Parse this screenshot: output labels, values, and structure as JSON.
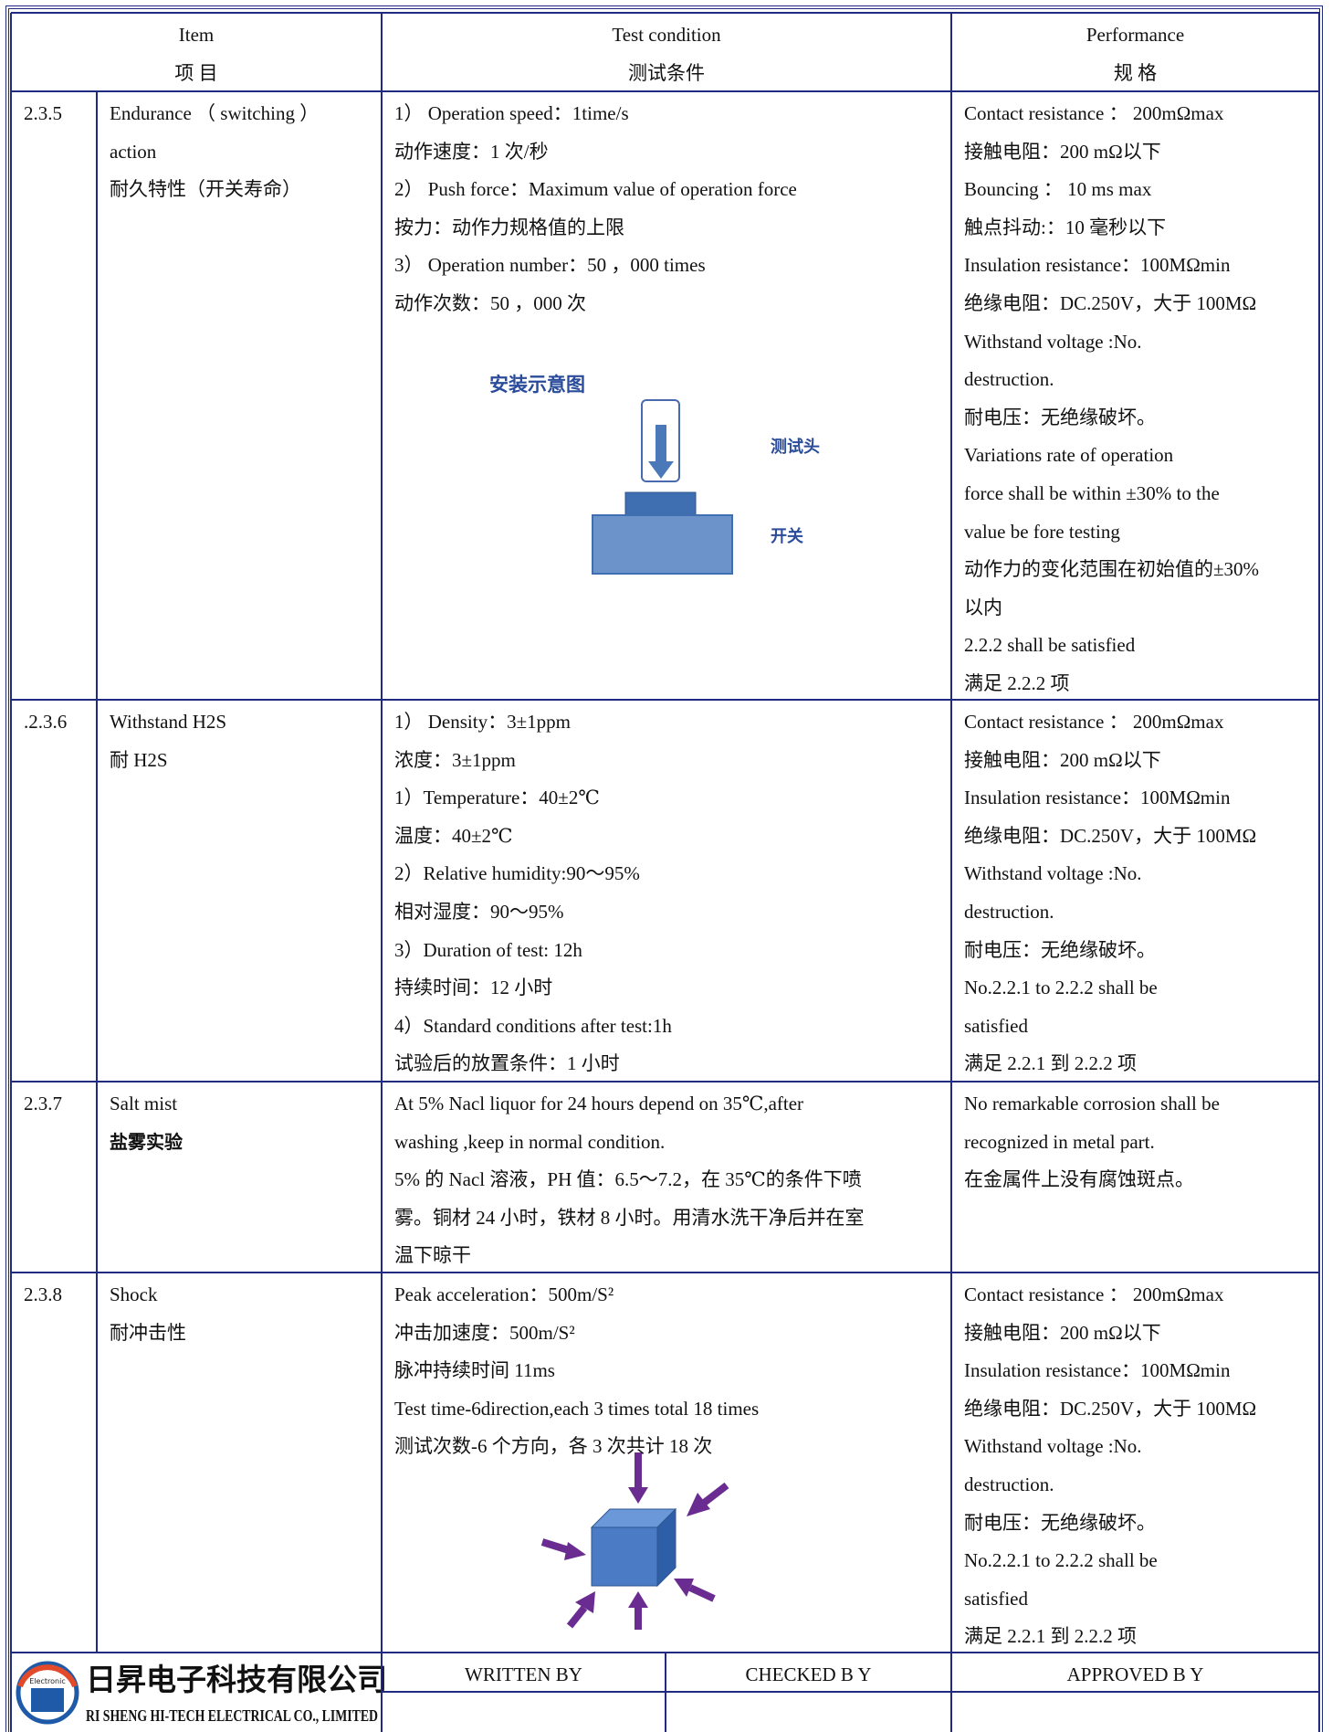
{
  "header": {
    "item": [
      "Item",
      "项 目"
    ],
    "condition": [
      "Test condition",
      "测试条件"
    ],
    "performance": [
      "Performance",
      "规 格"
    ]
  },
  "rows": [
    {
      "no": "2.3.5",
      "item": [
        "Endurance （ switching ）",
        "action",
        "耐久特性（开关寿命）"
      ],
      "condition": [
        "1） Operation speed：1time/s",
        "动作速度：1 次/秒",
        "2） Push force：Maximum value of operation force",
        "按力：动作力规格值的上限",
        "3） Operation number：50 ，000 times",
        "动作次数：50 ，000 次"
      ],
      "diagram": {
        "title": "安装示意图",
        "probe": "测试头",
        "switch": "开关"
      },
      "performance": [
        "Contact resistance ： 200mΩmax",
        "接触电阻：200 mΩ以下",
        "Bouncing ： 10 ms max",
        "触点抖动:：10 毫秒以下",
        "Insulation resistance：100MΩmin",
        "绝缘电阻：DC.250V，大于 100MΩ",
        "Withstand voltage :No.",
        "destruction.",
        "耐电压：无绝缘破坏。",
        "Variations rate of operation",
        "force shall be within ±30% to the",
        "value be fore testing",
        "动作力的变化范围在初始值的±30%",
        "以内",
        "2.2.2 shall be satisfied",
        "满足 2.2.2 项"
      ]
    },
    {
      "no": ".2.3.6",
      "item": [
        "Withstand H2S",
        "耐 H2S"
      ],
      "condition": [
        "1） Density：3±1ppm",
        "浓度：3±1ppm",
        "1）Temperature：40±2℃",
        "温度：40±2℃",
        "2）Relative humidity:90～95%",
        "相对湿度：90～95%",
        "3）Duration of test: 12h",
        "持续时间：12 小时",
        "4）Standard conditions after test:1h",
        "试验后的放置条件：1 小时"
      ],
      "performance": [
        "Contact resistance ： 200mΩmax",
        "接触电阻：200 mΩ以下",
        "Insulation resistance：100MΩmin",
        "绝缘电阻：DC.250V，大于 100MΩ",
        "Withstand voltage :No.",
        "destruction.",
        "耐电压：无绝缘破坏。",
        "No.2.2.1 to 2.2.2 shall be",
        "satisfied",
        "满足 2.2.1 到 2.2.2 项"
      ]
    },
    {
      "no": "2.3.7",
      "item": [
        "Salt mist",
        "盐雾实验"
      ],
      "condition": [
        "At 5% Nacl liquor for 24 hours depend on 35℃,after",
        "washing ,keep in normal condition.",
        "5% 的 Nacl 溶液，PH 值：6.5～7.2，在 35℃的条件下喷",
        "雾。铜材 24 小时，铁材 8 小时。用清水洗干净后并在室",
        "温下晾干"
      ],
      "performance": [
        "No remarkable corrosion shall be",
        "recognized in metal part.",
        "在金属件上没有腐蚀斑点。"
      ]
    },
    {
      "no": "2.3.8",
      "item": [
        "Shock",
        "耐冲击性"
      ],
      "condition": [
        "Peak acceleration：500m/S²",
        "冲击加速度：500m/S²",
        "脉冲持续时间 11ms",
        "Test time-6direction,each 3 times total 18 times",
        "测试次数-6 个方向，各 3 次共计 18 次"
      ],
      "performance": [
        "Contact resistance ： 200mΩmax",
        "接触电阻：200 mΩ以下",
        "Insulation resistance：100MΩmin",
        "绝缘电阻：DC.250V，大于 100MΩ",
        "Withstand voltage :No.",
        "destruction.",
        "耐电压：无绝缘破坏。",
        "No.2.2.1 to 2.2.2 shall be",
        "satisfied",
        "满足 2.2.1 到 2.2.2 项"
      ]
    }
  ],
  "footer": {
    "logo": "Electronic",
    "company": "日昇电子科技有限公司",
    "company_en": "RI SHENG HI-TECH ELECTRICAL CO., LIMITED",
    "written_by": "WRITTEN BY",
    "checked_by": "CHECKED B Y",
    "approved_by": "APPROVED B Y"
  }
}
